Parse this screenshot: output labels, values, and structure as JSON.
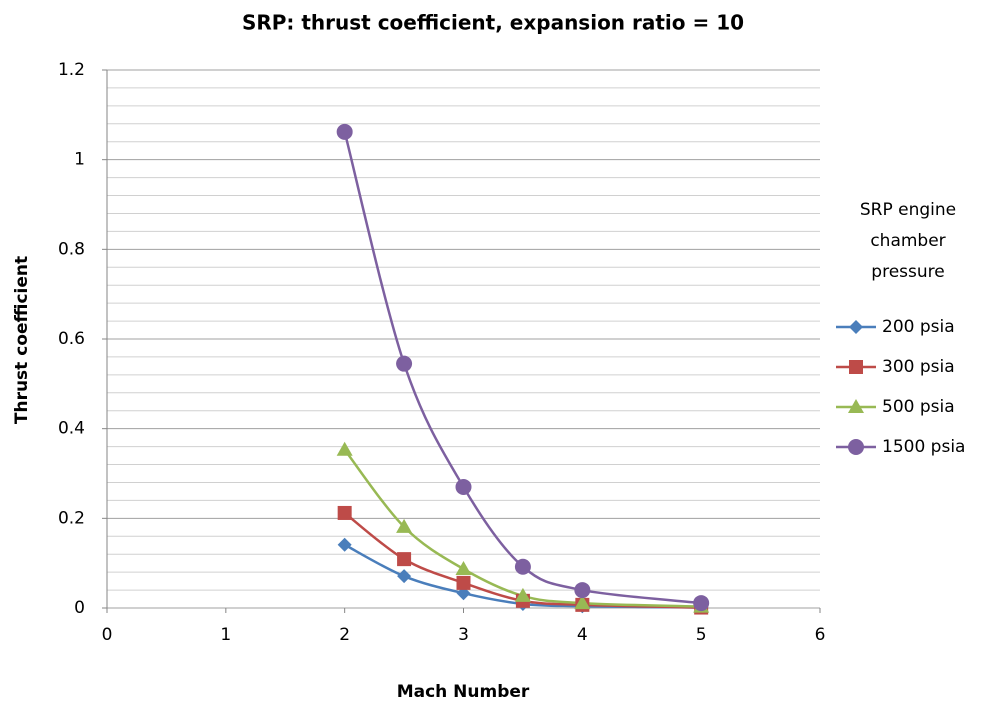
{
  "chart_data": {
    "type": "scatter_smooth",
    "title": "SRP: thrust coefficient, expansion ratio = 10",
    "x_label": "Mach Number",
    "y_label": "Thrust coefficient",
    "legend_title": [
      "SRP engine",
      "chamber",
      "pressure"
    ],
    "legend_position": "right",
    "x": [
      2,
      2.5,
      3,
      3.5,
      4,
      5
    ],
    "series": [
      {
        "name": "200 psia",
        "color": "#4a7ebb",
        "marker": "diamond",
        "values": [
          0.141,
          0.071,
          0.033,
          0.009,
          0.004,
          0.001
        ]
      },
      {
        "name": "300 psia",
        "color": "#be4b48",
        "marker": "square",
        "values": [
          0.212,
          0.109,
          0.056,
          0.016,
          0.007,
          0.001
        ]
      },
      {
        "name": "500 psia",
        "color": "#98b954",
        "marker": "triangle",
        "values": [
          0.353,
          0.181,
          0.087,
          0.027,
          0.011,
          0.003
        ]
      },
      {
        "name": "1500 psia",
        "color": "#7d60a0",
        "marker": "circle",
        "values": [
          1.062,
          0.545,
          0.27,
          0.092,
          0.04,
          0.011
        ]
      }
    ],
    "xlim": [
      0,
      6
    ],
    "xticks": [
      0,
      1,
      2,
      3,
      4,
      5,
      6
    ],
    "ylim": [
      0,
      1.2
    ],
    "yticks": [
      0,
      0.2,
      0.4,
      0.6,
      0.8,
      1,
      1.2
    ],
    "grid": true,
    "y_minor_grid": [
      0.04,
      0.08,
      0.12,
      0.16,
      0.24,
      0.28,
      0.32,
      0.36,
      0.44,
      0.48,
      0.52,
      0.56,
      0.64,
      0.68,
      0.72,
      0.76,
      0.84,
      0.88,
      0.92,
      0.96,
      1.04,
      1.08,
      1.12,
      1.16
    ]
  }
}
